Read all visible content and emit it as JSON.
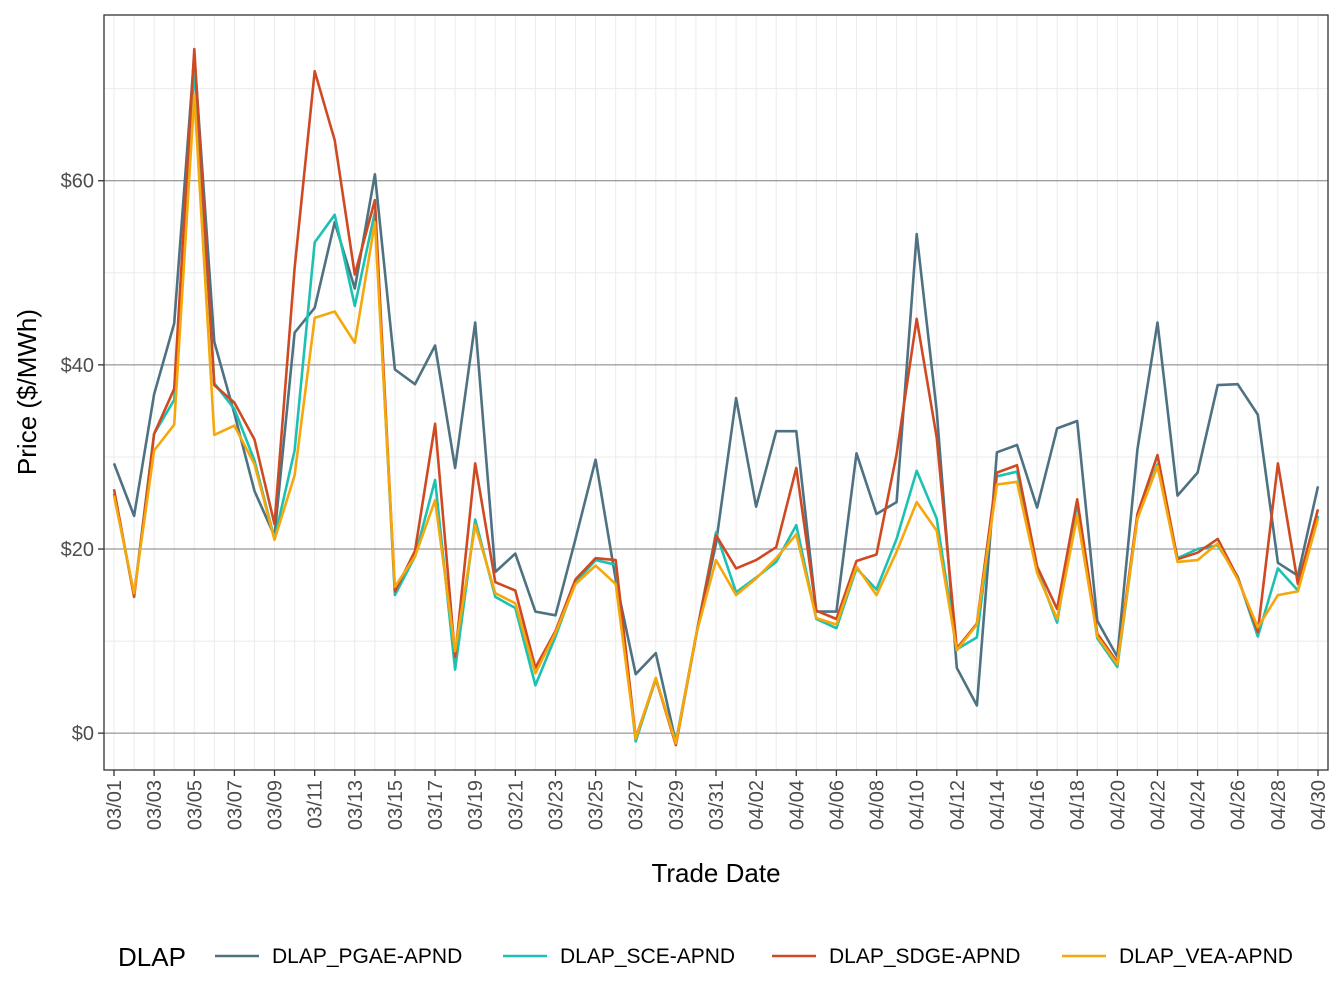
{
  "chart_data": {
    "type": "line",
    "xlabel": "Trade Date",
    "ylabel": "Price ($/MWh)",
    "ylim": [
      -4,
      78
    ],
    "y_ticks": [
      0,
      20,
      40,
      60
    ],
    "y_tick_labels": [
      "$0",
      "$20",
      "$40",
      "$60"
    ],
    "grid": true,
    "legend_title": "DLAP",
    "legend_position": "bottom",
    "x": [
      "03/01",
      "03/02",
      "03/03",
      "03/04",
      "03/05",
      "03/06",
      "03/07",
      "03/08",
      "03/09",
      "03/10",
      "03/11",
      "03/12",
      "03/13",
      "03/14",
      "03/15",
      "03/16",
      "03/17",
      "03/18",
      "03/19",
      "03/20",
      "03/21",
      "03/22",
      "03/23",
      "03/24",
      "03/25",
      "03/26",
      "03/27",
      "03/28",
      "03/29",
      "03/30",
      "03/31",
      "04/01",
      "04/02",
      "04/03",
      "04/04",
      "04/05",
      "04/06",
      "04/07",
      "04/08",
      "04/09",
      "04/10",
      "04/11",
      "04/12",
      "04/13",
      "04/14",
      "04/15",
      "04/16",
      "04/17",
      "04/18",
      "04/19",
      "04/20",
      "04/21",
      "04/22",
      "04/23",
      "04/24",
      "04/25",
      "04/26",
      "04/27",
      "04/28",
      "04/29",
      "04/30"
    ],
    "x_tick_labels": [
      "03/01",
      "03/03",
      "03/05",
      "03/07",
      "03/09",
      "03/11",
      "03/13",
      "03/15",
      "03/17",
      "03/19",
      "03/21",
      "03/23",
      "03/25",
      "03/27",
      "03/29",
      "03/31",
      "04/02",
      "04/04",
      "04/06",
      "04/08",
      "04/10",
      "04/12",
      "04/14",
      "04/16",
      "04/18",
      "04/20",
      "04/22",
      "04/24",
      "04/26",
      "04/28",
      "04/30"
    ],
    "series": [
      {
        "name": "DLAP_PGAE-APND",
        "color": "#4e7282",
        "values": [
          29.3,
          23.6,
          36.8,
          44.5,
          73.7,
          42.5,
          34.7,
          26.3,
          21.4,
          43.5,
          46.2,
          55.5,
          48.3,
          60.7,
          39.5,
          37.9,
          42.1,
          28.8,
          44.6,
          17.5,
          19.5,
          13.2,
          12.8,
          21.1,
          29.7,
          16.7,
          6.4,
          8.7,
          -1.0,
          10.5,
          20.6,
          36.4,
          24.6,
          32.8,
          32.8,
          13.2,
          13.2,
          30.4,
          23.8,
          25.1,
          54.2,
          35.0,
          7.1,
          3.0,
          30.5,
          31.3,
          24.5,
          33.1,
          33.9,
          12.2,
          8.3,
          30.8,
          44.6,
          25.8,
          28.3,
          37.8,
          37.9,
          34.6,
          18.5,
          17.1,
          26.8
        ]
      },
      {
        "name": "DLAP_SCE-APND",
        "color": "#1cc1b2",
        "values": [
          26.0,
          15.0,
          32.5,
          36.2,
          72.3,
          38.0,
          35.2,
          29.6,
          21.1,
          30.7,
          53.3,
          56.3,
          46.4,
          56.6,
          15.0,
          19.2,
          27.5,
          6.9,
          23.2,
          14.8,
          13.6,
          5.2,
          10.5,
          16.4,
          18.8,
          18.3,
          -0.9,
          5.9,
          -1.0,
          10.5,
          21.8,
          15.3,
          16.9,
          18.6,
          22.6,
          12.4,
          11.4,
          17.9,
          15.6,
          21.1,
          28.5,
          23.3,
          9.1,
          10.4,
          27.9,
          28.4,
          17.8,
          12.0,
          25.0,
          10.3,
          7.2,
          23.3,
          29.2,
          19.0,
          20.0,
          20.4,
          17.0,
          10.5,
          17.9,
          15.5,
          23.6
        ]
      },
      {
        "name": "DLAP_SDGE-APND",
        "color": "#cf4a22",
        "values": [
          26.5,
          14.8,
          32.5,
          37.4,
          74.3,
          37.8,
          35.9,
          31.9,
          22.7,
          50.5,
          71.9,
          64.4,
          49.8,
          57.9,
          15.4,
          19.8,
          33.6,
          8.3,
          29.3,
          16.4,
          15.5,
          7.1,
          11.1,
          16.7,
          19.0,
          18.8,
          -0.5,
          5.9,
          -1.3,
          10.5,
          21.5,
          17.9,
          18.8,
          20.2,
          28.8,
          13.3,
          12.4,
          18.7,
          19.4,
          30.3,
          45.0,
          32.1,
          9.2,
          11.9,
          28.3,
          29.1,
          18.1,
          13.5,
          25.4,
          10.8,
          7.7,
          23.8,
          30.2,
          18.9,
          19.6,
          21.1,
          16.9,
          11.0,
          29.3,
          16.2,
          24.3
        ]
      },
      {
        "name": "DLAP_VEA-APND",
        "color": "#f5a70c",
        "values": [
          25.8,
          15.2,
          30.7,
          33.5,
          69.3,
          32.4,
          33.4,
          29.2,
          21.0,
          28.0,
          45.1,
          45.8,
          42.4,
          55.5,
          15.9,
          19.2,
          25.3,
          8.9,
          22.6,
          15.2,
          14.1,
          6.5,
          10.9,
          16.2,
          18.2,
          16.2,
          -0.6,
          6.0,
          -1.1,
          10.6,
          18.8,
          15.0,
          16.8,
          19.0,
          21.6,
          12.5,
          11.8,
          18.1,
          15.0,
          19.7,
          25.1,
          22.0,
          9.0,
          11.8,
          27.0,
          27.3,
          17.4,
          12.4,
          23.6,
          10.5,
          7.5,
          23.3,
          29.0,
          18.6,
          18.8,
          20.6,
          16.7,
          11.5,
          15.0,
          15.4,
          23.3
        ]
      }
    ]
  }
}
